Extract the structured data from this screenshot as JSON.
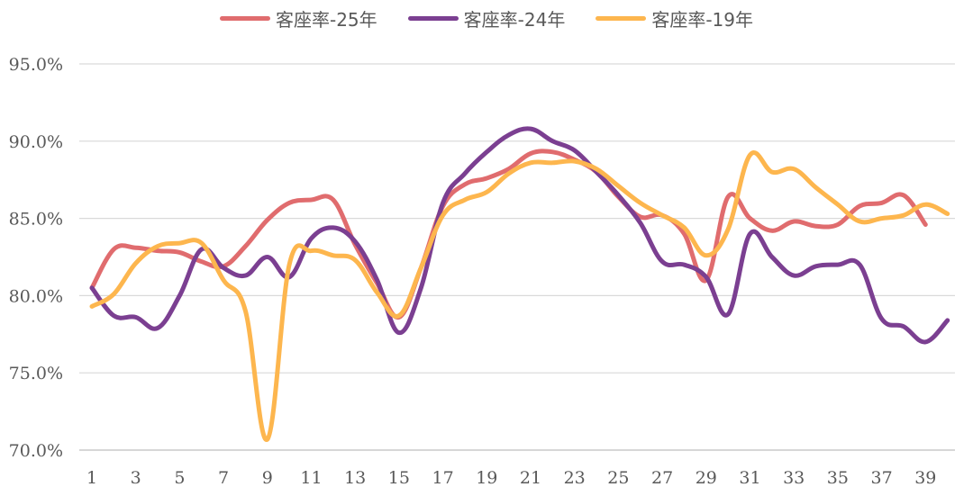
{
  "chart_data": {
    "type": "line",
    "title": "",
    "xlabel": "",
    "ylabel": "",
    "x": [
      1,
      2,
      3,
      4,
      5,
      6,
      7,
      8,
      9,
      10,
      11,
      12,
      13,
      14,
      15,
      16,
      17,
      18,
      19,
      20,
      21,
      22,
      23,
      24,
      25,
      26,
      27,
      28,
      29,
      30,
      31,
      32,
      33,
      34,
      35,
      36,
      37,
      38,
      39,
      40
    ],
    "x_tick_labels": [
      "1",
      "3",
      "5",
      "7",
      "9",
      "11",
      "13",
      "15",
      "17",
      "19",
      "21",
      "23",
      "25",
      "27",
      "29",
      "31",
      "33",
      "35",
      "37",
      "39"
    ],
    "y_tick_labels": [
      "70.0%",
      "75.0%",
      "80.0%",
      "85.0%",
      "90.0%",
      "95.0%"
    ],
    "ylim": [
      70,
      95
    ],
    "grid": "horizontal",
    "legend_position": "top",
    "series": [
      {
        "name": "客座率-25年",
        "color": "#E06C6E",
        "values": [
          80.5,
          83.0,
          83.1,
          82.9,
          82.8,
          82.2,
          81.9,
          83.2,
          84.9,
          86.0,
          86.2,
          86.2,
          83.3,
          80.8,
          78.6,
          81.8,
          85.8,
          87.2,
          87.6,
          88.2,
          89.2,
          89.3,
          88.8,
          88.0,
          86.4,
          85.1,
          85.2,
          84.0,
          81.0,
          86.4,
          85.0,
          84.2,
          84.8,
          84.5,
          84.6,
          85.8,
          86.0,
          86.5,
          84.6,
          null
        ],
        "values_note": ""
      },
      {
        "name": "客座率-24年",
        "color": "#7B3F91",
        "values": [
          80.5,
          78.7,
          78.6,
          77.9,
          80.0,
          83.0,
          81.8,
          81.3,
          82.5,
          81.2,
          83.7,
          84.4,
          83.5,
          81.0,
          77.6,
          80.5,
          86.0,
          87.9,
          89.3,
          90.4,
          90.8,
          90.0,
          89.4,
          88.0,
          86.5,
          84.7,
          82.2,
          82.0,
          81.2,
          78.8,
          84.0,
          82.5,
          81.3,
          81.9,
          82.0,
          82.0,
          78.5,
          78.0,
          77.0,
          78.4
        ]
      },
      {
        "name": "客座率-19年",
        "color": "#FDB64E",
        "values": [
          79.3,
          80.1,
          82.1,
          83.2,
          83.4,
          83.4,
          81.0,
          79.0,
          70.7,
          82.0,
          82.9,
          82.6,
          82.3,
          80.2,
          78.7,
          81.8,
          85.2,
          86.2,
          86.7,
          87.9,
          88.6,
          88.6,
          88.7,
          88.2,
          87.1,
          86.0,
          85.2,
          84.4,
          82.6,
          84.3,
          89.1,
          88.0,
          88.2,
          87.0,
          85.9,
          84.8,
          85.0,
          85.2,
          85.9,
          85.3
        ]
      }
    ]
  }
}
